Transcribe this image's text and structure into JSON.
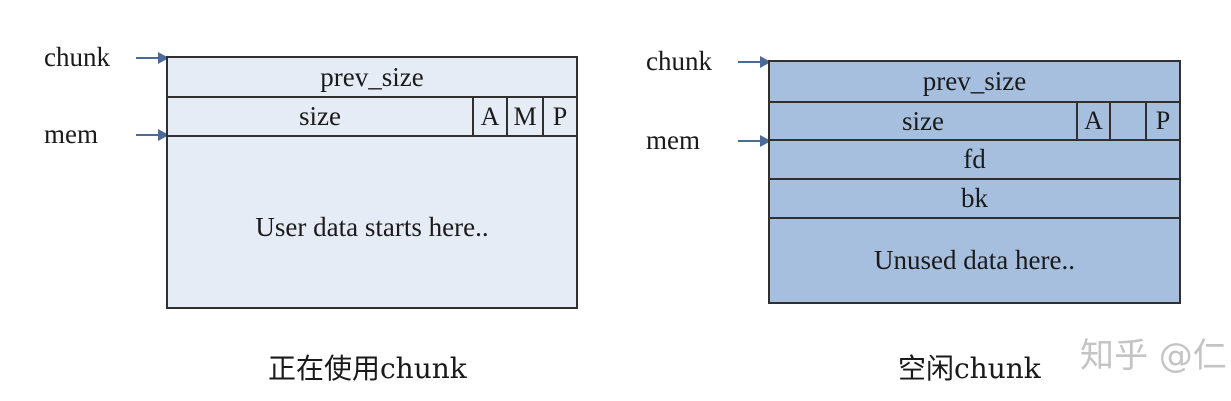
{
  "left": {
    "chunk_label": "chunk",
    "mem_label": "mem",
    "prev_size": "prev_size",
    "size": "size",
    "flags": [
      "A",
      "M",
      "P"
    ],
    "body": "User data starts here..",
    "caption": "正在使用chunk"
  },
  "right": {
    "chunk_label": "chunk",
    "mem_label": "mem",
    "prev_size": "prev_size",
    "size": "size",
    "flags": [
      "A",
      "",
      "P"
    ],
    "fd": "fd",
    "bk": "bk",
    "body": "Unused data here..",
    "caption": "空闲chunk"
  },
  "watermark": "知乎 @仁"
}
